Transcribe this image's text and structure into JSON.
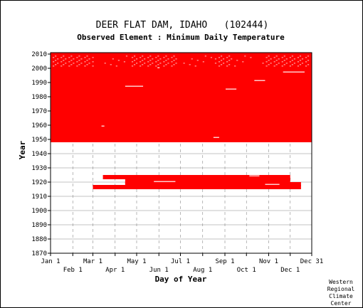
{
  "chart_data": {
    "type": "heatmap",
    "title": "DEER FLAT DAM, IDAHO   (102444)",
    "subtitle": "Observed Element : Minimum Daily Temperature",
    "xlabel": "Day of Year",
    "ylabel": "Year",
    "xlim": [
      1,
      365
    ],
    "ylim": [
      1870,
      2011
    ],
    "x_ticks_upper": [
      {
        "label": "Jan 1",
        "day": 1
      },
      {
        "label": "Mar 1",
        "day": 60
      },
      {
        "label": "May 1",
        "day": 121
      },
      {
        "label": "Jul 1",
        "day": 182
      },
      {
        "label": "Sep 1",
        "day": 244
      },
      {
        "label": "Nov 1",
        "day": 305
      },
      {
        "label": "Dec 31",
        "day": 365
      }
    ],
    "x_ticks_lower": [
      {
        "label": "Feb 1",
        "day": 32
      },
      {
        "label": "Apr 1",
        "day": 91
      },
      {
        "label": "Jun 1",
        "day": 152
      },
      {
        "label": "Aug 1",
        "day": 213
      },
      {
        "label": "Oct 1",
        "day": 274
      },
      {
        "label": "Dec 1",
        "day": 335
      }
    ],
    "y_ticks": [
      1870,
      1880,
      1890,
      1900,
      1910,
      1920,
      1930,
      1940,
      1950,
      1960,
      1970,
      1980,
      1990,
      2000,
      2010
    ],
    "grid": true,
    "colors": {
      "observed": "#ff0000",
      "grid": "#888888",
      "plot_border": "#000000"
    },
    "blocks": [
      {
        "year_start": 1948,
        "year_end": 2010,
        "day_start": 1,
        "day_end": 365
      },
      {
        "year_start": 1922,
        "year_end": 1924,
        "day_start": 74,
        "day_end": 335
      },
      {
        "year_start": 1919,
        "year_end": 1922,
        "day_start": 105,
        "day_end": 335
      },
      {
        "year_start": 1917,
        "year_end": 1919,
        "day_start": 105,
        "day_end": 350
      },
      {
        "year_start": 1915,
        "year_end": 1917,
        "day_start": 60,
        "day_end": 350
      }
    ],
    "gaps": [
      {
        "year": 1987,
        "day_start": 105,
        "day_end": 130
      },
      {
        "year": 1985,
        "day_start": 245,
        "day_end": 260
      },
      {
        "year": 1991,
        "day_start": 285,
        "day_end": 300
      },
      {
        "year": 1997,
        "day_start": 325,
        "day_end": 355
      },
      {
        "year": 1959,
        "day_start": 72,
        "day_end": 76
      },
      {
        "year": 1951,
        "day_start": 228,
        "day_end": 236
      },
      {
        "year": 2000,
        "day_start": 150,
        "day_end": 153
      },
      {
        "year": 1924,
        "day_start": 278,
        "day_end": 292
      },
      {
        "year": 1920,
        "day_start": 145,
        "day_end": 175
      },
      {
        "year": 1918,
        "day_start": 300,
        "day_end": 320
      }
    ],
    "dotted_missing_years": [
      2001,
      2002,
      2003,
      2004,
      2005,
      2006,
      2007,
      2008
    ]
  },
  "credit": [
    "Western",
    "Regional",
    "Climate",
    "Center"
  ]
}
